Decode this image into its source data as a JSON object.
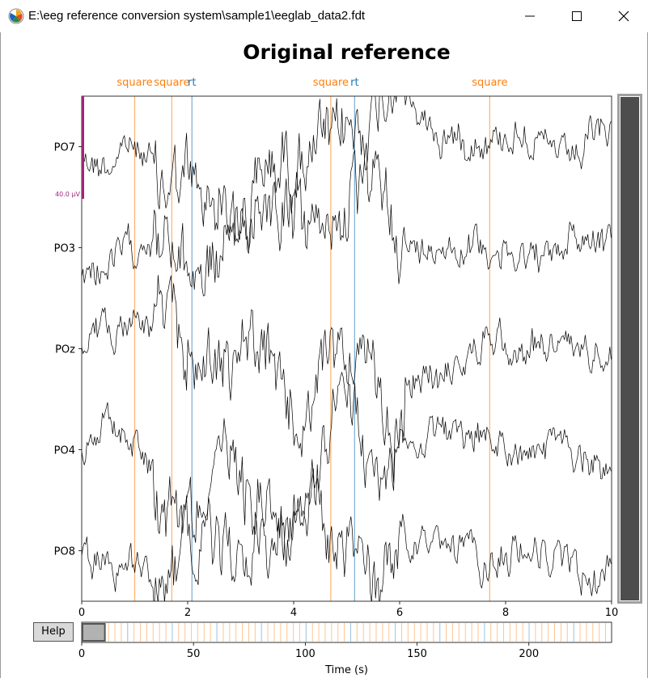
{
  "window": {
    "title": "E:\\eeg reference conversion system\\sample1\\eeglab_data2.fdt",
    "icon": "matplotlib-icon",
    "controls": [
      "minimize-icon",
      "maximize-icon",
      "close-icon"
    ]
  },
  "help_button": {
    "label": "Help"
  },
  "chart_data": {
    "type": "line",
    "title": "Original reference",
    "channels": [
      "PO7",
      "PO3",
      "POz",
      "PO4",
      "PO8"
    ],
    "x_axis": {
      "range": [
        0,
        10
      ],
      "ticks": [
        "0",
        "2",
        "4",
        "6",
        "8",
        "10"
      ]
    },
    "scale_bar": {
      "label": "40.0 µV"
    },
    "annotations": [
      {
        "label": "square",
        "time": 1.0,
        "color": "#ff7f0e"
      },
      {
        "label": "square",
        "time": 1.7,
        "color": "#ff7f0e"
      },
      {
        "label": "rt",
        "time": 2.08,
        "color": "#1f77b4"
      },
      {
        "label": "square",
        "time": 4.7,
        "color": "#ff7f0e"
      },
      {
        "label": "rt",
        "time": 5.15,
        "color": "#1f77b4"
      },
      {
        "label": "square",
        "time": 7.7,
        "color": "#ff7f0e"
      }
    ],
    "overview": {
      "xlabel": "Time (s)",
      "range": [
        0,
        237
      ],
      "ticks": [
        "0",
        "50",
        "100",
        "150",
        "200"
      ],
      "view_window": [
        0,
        10
      ]
    },
    "colors": {
      "trace": "#000000",
      "square": "#ff7f0e",
      "rt": "#1f77b4",
      "scalebar": "#a0267a",
      "scrollbar": "#4d4d4d"
    }
  }
}
